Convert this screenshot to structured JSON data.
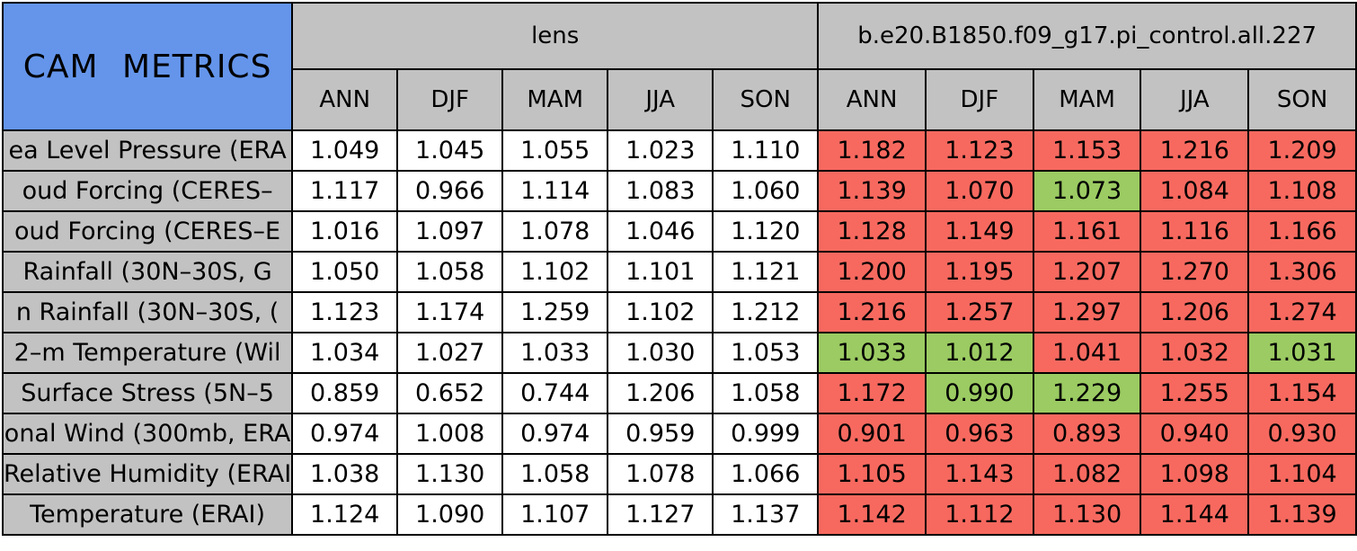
{
  "chart_data": {
    "type": "table",
    "title": "CAM METRICS",
    "column_groups": {
      "case_a": "lens",
      "case_b": "b.e20.B1850.f09_g17.pi_control.all.227"
    },
    "season_columns": [
      "ANN",
      "DJF",
      "MAM",
      "JJA",
      "SON"
    ],
    "colors": {
      "title_bg": "#6495EB",
      "header_bg": "#C2C2C2",
      "worse_bg": "#F7695F",
      "better_bg": "#9BCB62",
      "neutral_bg": "#FFFFFF"
    },
    "rows": [
      {
        "label": "ea Level Pressure (ERA",
        "lens": [
          "1.049",
          "1.045",
          "1.055",
          "1.023",
          "1.110"
        ],
        "control": [
          "1.182",
          "1.123",
          "1.153",
          "1.216",
          "1.209"
        ],
        "control_cell_colors": [
          "red",
          "red",
          "red",
          "red",
          "red"
        ]
      },
      {
        "label": "oud Forcing (CERES–",
        "lens": [
          "1.117",
          "0.966",
          "1.114",
          "1.083",
          "1.060"
        ],
        "control": [
          "1.139",
          "1.070",
          "1.073",
          "1.084",
          "1.108"
        ],
        "control_cell_colors": [
          "red",
          "red",
          "green",
          "red",
          "red"
        ]
      },
      {
        "label": "oud Forcing (CERES–E",
        "lens": [
          "1.016",
          "1.097",
          "1.078",
          "1.046",
          "1.120"
        ],
        "control": [
          "1.128",
          "1.149",
          "1.161",
          "1.116",
          "1.166"
        ],
        "control_cell_colors": [
          "red",
          "red",
          "red",
          "red",
          "red"
        ]
      },
      {
        "label": "Rainfall (30N–30S, G",
        "lens": [
          "1.050",
          "1.058",
          "1.102",
          "1.101",
          "1.121"
        ],
        "control": [
          "1.200",
          "1.195",
          "1.207",
          "1.270",
          "1.306"
        ],
        "control_cell_colors": [
          "red",
          "red",
          "red",
          "red",
          "red"
        ]
      },
      {
        "label": "n Rainfall (30N–30S, (",
        "lens": [
          "1.123",
          "1.174",
          "1.259",
          "1.102",
          "1.212"
        ],
        "control": [
          "1.216",
          "1.257",
          "1.297",
          "1.206",
          "1.274"
        ],
        "control_cell_colors": [
          "red",
          "red",
          "red",
          "red",
          "red"
        ]
      },
      {
        "label": "2–m Temperature (Wil",
        "lens": [
          "1.034",
          "1.027",
          "1.033",
          "1.030",
          "1.053"
        ],
        "control": [
          "1.033",
          "1.012",
          "1.041",
          "1.032",
          "1.031"
        ],
        "control_cell_colors": [
          "green",
          "green",
          "red",
          "red",
          "green"
        ]
      },
      {
        "label": "Surface Stress (5N–5",
        "lens": [
          "0.859",
          "0.652",
          "0.744",
          "1.206",
          "1.058"
        ],
        "control": [
          "1.172",
          "0.990",
          "1.229",
          "1.255",
          "1.154"
        ],
        "control_cell_colors": [
          "red",
          "green",
          "green",
          "red",
          "red"
        ]
      },
      {
        "label": "onal Wind (300mb, ERA",
        "lens": [
          "0.974",
          "1.008",
          "0.974",
          "0.959",
          "0.999"
        ],
        "control": [
          "0.901",
          "0.963",
          "0.893",
          "0.940",
          "0.930"
        ],
        "control_cell_colors": [
          "red",
          "red",
          "red",
          "red",
          "red"
        ]
      },
      {
        "label": "Relative Humidity (ERAI",
        "lens": [
          "1.038",
          "1.130",
          "1.058",
          "1.078",
          "1.066"
        ],
        "control": [
          "1.105",
          "1.143",
          "1.082",
          "1.098",
          "1.104"
        ],
        "control_cell_colors": [
          "red",
          "red",
          "red",
          "red",
          "red"
        ]
      },
      {
        "label": "Temperature (ERAI)",
        "lens": [
          "1.124",
          "1.090",
          "1.107",
          "1.127",
          "1.137"
        ],
        "control": [
          "1.142",
          "1.112",
          "1.130",
          "1.144",
          "1.139"
        ],
        "control_cell_colors": [
          "red",
          "red",
          "red",
          "red",
          "red"
        ]
      }
    ]
  }
}
